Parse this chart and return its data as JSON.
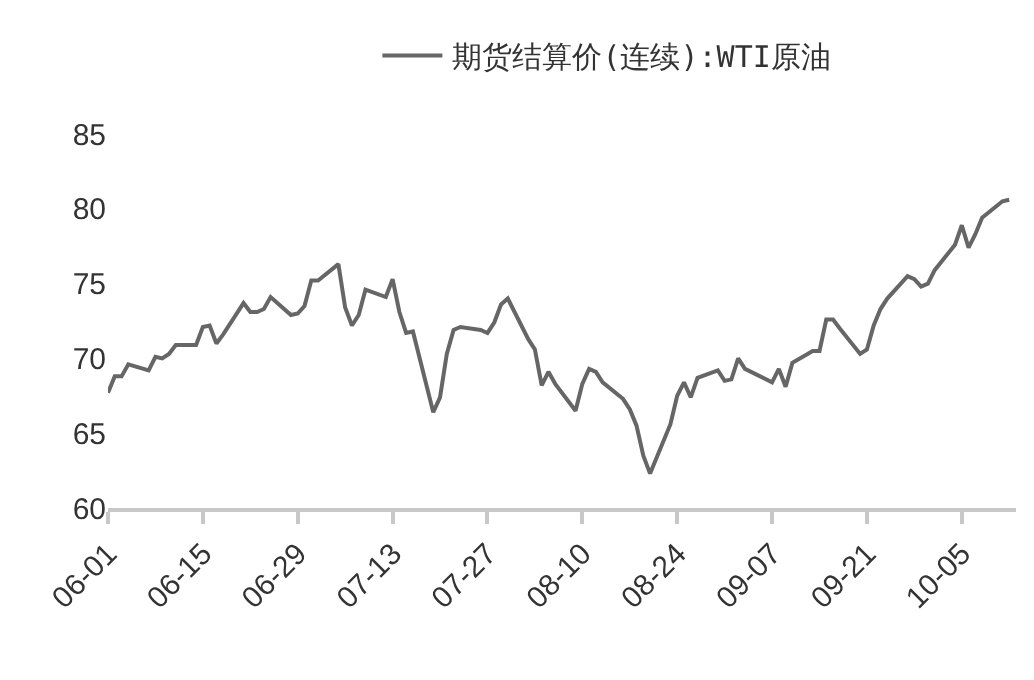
{
  "chart_data": {
    "type": "line",
    "legend": "top",
    "x": [
      "--06-01",
      "--06-02",
      "--06-03",
      "--06-04",
      "--06-07",
      "--06-08",
      "--06-09",
      "--06-10",
      "--06-11",
      "--06-14",
      "--06-15",
      "--06-16",
      "--06-17",
      "--06-18",
      "--06-21",
      "--06-22",
      "--06-23",
      "--06-24",
      "--06-25",
      "--06-28",
      "--06-29",
      "--06-30",
      "--07-01",
      "--07-02",
      "--07-05",
      "--07-06",
      "--07-07",
      "--07-08",
      "--07-09",
      "--07-12",
      "--07-13",
      "--07-14",
      "--07-15",
      "--07-16",
      "--07-19",
      "--07-20",
      "--07-21",
      "--07-22",
      "--07-23",
      "--07-26",
      "--07-27",
      "--07-28",
      "--07-29",
      "--07-30",
      "--08-02",
      "--08-03",
      "--08-04",
      "--08-05",
      "--08-06",
      "--08-09",
      "--08-10",
      "--08-11",
      "--08-12",
      "--08-13",
      "--08-16",
      "--08-17",
      "--08-18",
      "--08-19",
      "--08-20",
      "--08-23",
      "--08-24",
      "--08-25",
      "--08-26",
      "--08-27",
      "--08-30",
      "--08-31",
      "--09-01",
      "--09-02",
      "--09-03",
      "--09-07",
      "--09-08",
      "--09-09",
      "--09-10",
      "--09-13",
      "--09-14",
      "--09-15",
      "--09-16",
      "--09-17",
      "--09-20",
      "--09-21",
      "--09-22",
      "--09-23",
      "--09-24",
      "--09-27",
      "--09-28",
      "--09-29",
      "--09-30",
      "--10-01",
      "--10-04",
      "--10-05",
      "--10-06",
      "--10-07",
      "--10-08",
      "--10-11",
      "--10-12"
    ],
    "series": [
      {
        "name": "期货结算价(连续):WTI原油",
        "color": "#666666",
        "values": [
          67.7,
          68.8,
          68.8,
          69.6,
          69.2,
          70.1,
          70.0,
          70.3,
          70.9,
          70.9,
          72.1,
          72.2,
          71.0,
          71.6,
          73.7,
          73.1,
          73.1,
          73.3,
          74.1,
          72.9,
          73.0,
          73.5,
          75.2,
          75.2,
          76.3,
          73.4,
          72.2,
          72.9,
          74.6,
          74.1,
          75.3,
          73.1,
          71.7,
          71.8,
          66.4,
          67.4,
          70.3,
          71.9,
          72.1,
          71.9,
          71.7,
          72.4,
          73.6,
          74.0,
          71.3,
          70.6,
          68.2,
          69.1,
          68.3,
          66.5,
          68.3,
          69.3,
          69.1,
          68.4,
          67.3,
          66.6,
          65.5,
          63.5,
          62.3,
          65.6,
          67.5,
          68.4,
          67.4,
          68.7,
          69.2,
          68.5,
          68.6,
          70.0,
          69.3,
          68.4,
          69.3,
          68.1,
          69.7,
          70.5,
          70.5,
          72.6,
          72.6,
          72.0,
          70.3,
          70.6,
          72.2,
          73.3,
          74.0,
          75.5,
          75.3,
          74.8,
          75.0,
          75.9,
          77.6,
          78.9,
          77.4,
          78.3,
          79.4,
          80.5,
          80.6
        ]
      }
    ],
    "xlim": [
      "--06-01",
      "--10-13"
    ],
    "xticks": [
      {
        "value": "--06-01",
        "label": "06-01"
      },
      {
        "value": "--06-15",
        "label": "06-15"
      },
      {
        "value": "--06-29",
        "label": "06-29"
      },
      {
        "value": "--07-13",
        "label": "07-13"
      },
      {
        "value": "--07-27",
        "label": "07-27"
      },
      {
        "value": "--08-10",
        "label": "08-10"
      },
      {
        "value": "--08-24",
        "label": "08-24"
      },
      {
        "value": "--09-07",
        "label": "09-07"
      },
      {
        "value": "--09-21",
        "label": "09-21"
      },
      {
        "value": "--10-05",
        "label": "10-05"
      }
    ],
    "ylim": [
      60,
      85
    ],
    "yticks": [
      60,
      65,
      70,
      75,
      80,
      85
    ]
  }
}
